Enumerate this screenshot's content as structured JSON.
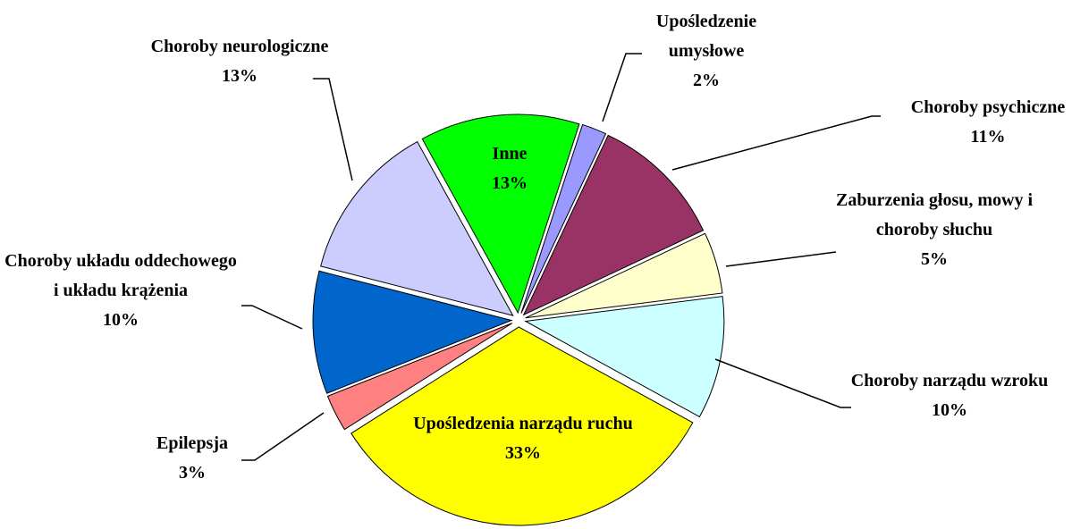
{
  "chart_data": {
    "type": "pie",
    "categories": [
      "Upośledzenie umysłowe",
      "Choroby psychiczne",
      "Zaburzenia głosu, mowy i choroby słuchu",
      "Choroby narządu wzroku",
      "Upośledzenia narządu ruchu",
      "Epilepsja",
      "Choroby układu oddechowego i układu krążenia",
      "Choroby neurologiczne",
      "Inne"
    ],
    "values": [
      2,
      11,
      5,
      10,
      33,
      3,
      10,
      13,
      13
    ],
    "value_labels": [
      "2%",
      "11%",
      "5%",
      "10%",
      "33%",
      "3%",
      "10%",
      "13%",
      "13%"
    ],
    "colors": [
      "#9999ff",
      "#993366",
      "#ffffcc",
      "#ccffff",
      "#ffff00",
      "#ff8080",
      "#0066cc",
      "#ccccff",
      "#00ff00"
    ]
  }
}
